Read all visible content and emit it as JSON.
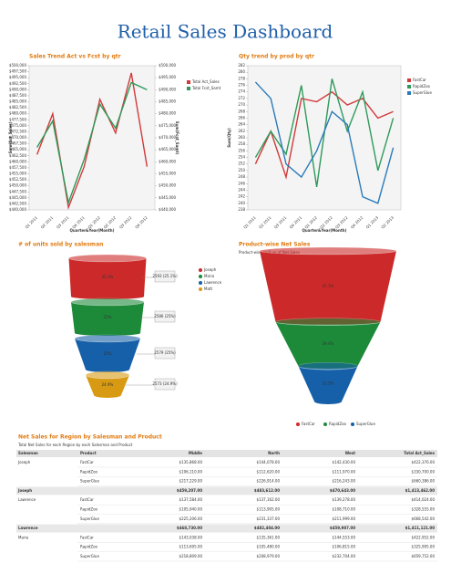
{
  "title": "Retail Sales Dashboard",
  "chart_data": [
    {
      "type": "line",
      "title": "Sales Trend Act vs Fcst by qtr",
      "x_label": "Quarter&Year(Month)",
      "y_label": "Sum(Act_Sales)",
      "y2_label": "Sum(Fcst_Samt)",
      "categories": [
        "Q1 2011",
        "Q2 2011",
        "Q3 2011",
        "Q4 2011",
        "Q1 2012",
        "Q2 2012",
        "Q3 2012",
        "Q4 2012"
      ],
      "series": [
        {
          "name": "Total Act_Sales",
          "color": "#d23a3a",
          "values": [
            463000,
            480000,
            441000,
            458000,
            486000,
            472000,
            497000,
            458000
          ]
        },
        {
          "name": "Total Fcst_Samt",
          "color": "#2e9a5a",
          "axis": "y2",
          "values": [
            466000,
            477000,
            443000,
            461000,
            484000,
            474000,
            493000,
            490000
          ]
        }
      ],
      "ylim": [
        440000,
        500000
      ],
      "yticks": [
        {
          "value": 440000,
          "label": "$440,000"
        },
        {
          "value": 442500,
          "label": "$442,500"
        },
        {
          "value": 445000,
          "label": "$445,000"
        },
        {
          "value": 447500,
          "label": "$447,500"
        },
        {
          "value": 450000,
          "label": "$450,000"
        },
        {
          "value": 452500,
          "label": "$452,500"
        },
        {
          "value": 455000,
          "label": "$455,000"
        },
        {
          "value": 457500,
          "label": "$457,500"
        },
        {
          "value": 460000,
          "label": "$460,000"
        },
        {
          "value": 462500,
          "label": "$462,500"
        },
        {
          "value": 465000,
          "label": "$465,000"
        },
        {
          "value": 467500,
          "label": "$467,500"
        },
        {
          "value": 470000,
          "label": "$470,000"
        },
        {
          "value": 472500,
          "label": "$472,500"
        },
        {
          "value": 475000,
          "label": "$475,000"
        },
        {
          "value": 477500,
          "label": "$477,500"
        },
        {
          "value": 480000,
          "label": "$480,000"
        },
        {
          "value": 482500,
          "label": "$482,500"
        },
        {
          "value": 485000,
          "label": "$485,000"
        },
        {
          "value": 487500,
          "label": "$487,500"
        },
        {
          "value": 490000,
          "label": "$490,000"
        },
        {
          "value": 492500,
          "label": "$492,500"
        },
        {
          "value": 495000,
          "label": "$495,000"
        },
        {
          "value": 497500,
          "label": "$497,500"
        },
        {
          "value": 500000,
          "label": "$500,000"
        }
      ],
      "y2lim": [
        440000,
        500000
      ],
      "y2ticks": [
        {
          "value": 440000,
          "label": "$440,000"
        },
        {
          "value": 445000,
          "label": "$445,000"
        },
        {
          "value": 450000,
          "label": "$450,000"
        },
        {
          "value": 455000,
          "label": "$455,000"
        },
        {
          "value": 460000,
          "label": "$460,000"
        },
        {
          "value": 465000,
          "label": "$465,000"
        },
        {
          "value": 470000,
          "label": "$470,000"
        },
        {
          "value": 475000,
          "label": "$475,000"
        },
        {
          "value": 480000,
          "label": "$480,000"
        },
        {
          "value": 485000,
          "label": "$485,000"
        },
        {
          "value": 490000,
          "label": "$490,000"
        },
        {
          "value": 495000,
          "label": "$495,000"
        },
        {
          "value": 500000,
          "label": "$500,000"
        }
      ]
    },
    {
      "type": "line",
      "title": "Qty trend by prod by qtr",
      "x_label": "Quarter&Year(Month)",
      "y_label": "Sum(Qty)",
      "categories": [
        "Q1 2011",
        "Q2 2011",
        "Q3 2011",
        "Q4 2011",
        "Q1 2012",
        "Q2 2012",
        "Q3 2012",
        "Q4 2012",
        "Q1 2013",
        "Q2 2013"
      ],
      "series": [
        {
          "name": "FastCar",
          "color": "#d23a3a",
          "values": [
            252,
            262,
            248,
            272,
            271,
            274,
            270,
            272,
            266,
            268
          ]
        },
        {
          "name": "RapidZoo",
          "color": "#2e9a5a",
          "values": [
            254,
            262,
            255,
            276,
            245,
            278,
            262,
            274,
            250,
            266
          ]
        },
        {
          "name": "SuperGlue",
          "color": "#2a7ab8",
          "values": [
            277,
            272,
            252,
            248,
            256,
            268,
            264,
            242,
            240,
            257
          ]
        }
      ],
      "ylim": [
        238,
        282
      ],
      "yticks": [
        238,
        240,
        242,
        244,
        246,
        248,
        250,
        252,
        254,
        256,
        258,
        260,
        262,
        264,
        266,
        268,
        270,
        272,
        274,
        276,
        278,
        280,
        282
      ]
    },
    {
      "type": "funnel",
      "title": "# of units sold by salesman",
      "categories": [
        "Joseph",
        "Maria",
        "Lawrence",
        "Matt"
      ],
      "values": [
        2593,
        2586,
        2579,
        2573
      ],
      "percent_labels": [
        "25.1%",
        "25%",
        "25%",
        "24.9%"
      ],
      "value_labels": [
        "2593 (25.1%)",
        "2586 (25%)",
        "2579 (25%)",
        "2573 (24.9%)"
      ],
      "colors": [
        "#cc2a2a",
        "#1d8a3a",
        "#1560a8",
        "#d89a12"
      ]
    },
    {
      "type": "funnel",
      "title": "Product-wise Net Sales",
      "subtitle": "Product-wise split up of Net Sales",
      "categories": [
        "FastCar",
        "RapidZoo",
        "SuperGlue"
      ],
      "values": [
        47.1,
        29.4,
        23.5
      ],
      "value_labels": [
        "47.1%",
        "29.4%",
        "23.5%"
      ],
      "colors": [
        "#cc2a2a",
        "#1d8a3a",
        "#1560a8"
      ]
    }
  ],
  "table": {
    "title": "Net Sales for Region by Salesman and Product",
    "subtitle": "Total Net Sales for each Region by each Salesman and Product",
    "columns": [
      "Salesman",
      "Product",
      "Middle",
      "North",
      "West",
      "Total Act_Sales"
    ],
    "rows": [
      [
        "Joseph",
        "FastCar",
        "$135,868.00",
        "$144,078.00",
        "$142,430.00",
        "$422,376.00"
      ],
      [
        null,
        "RapidZoo",
        "$106,110.00",
        "$112,620.00",
        "$111,970.00",
        "$330,700.00"
      ],
      [
        null,
        "SuperGlue",
        "$217,229.00",
        "$226,914.00",
        "$216,243.00",
        "$660,386.00"
      ],
      [
        "Joseph",
        null,
        "$459,207.00",
        "$483,612.00",
        "$470,643.00",
        "$1,413,462.00"
      ],
      [
        "Lawrence",
        "FastCar",
        "$137,584.00",
        "$137,162.00",
        "$139,278.00",
        "$414,024.00"
      ],
      [
        null,
        "RapidZoo",
        "$105,940.00",
        "$113,905.00",
        "$108,710.00",
        "$328,555.00"
      ],
      [
        null,
        "SuperGlue",
        "$225,206.00",
        "$231,337.00",
        "$211,999.00",
        "$668,542.00"
      ],
      [
        "Lawrence",
        null,
        "$468,730.00",
        "$482,404.00",
        "$459,987.00",
        "$1,411,121.00"
      ],
      [
        "Maria",
        "FastCar",
        "$143,038.00",
        "$135,361.00",
        "$144,553.00",
        "$422,952.00"
      ],
      [
        null,
        "RapidZoo",
        "$113,695.00",
        "$105,480.00",
        "$106,815.00",
        "$325,995.00"
      ],
      [
        null,
        "SuperGlue",
        "$218,809.00",
        "$208,979.00",
        "$232,704.00",
        "$659,752.00"
      ]
    ]
  }
}
